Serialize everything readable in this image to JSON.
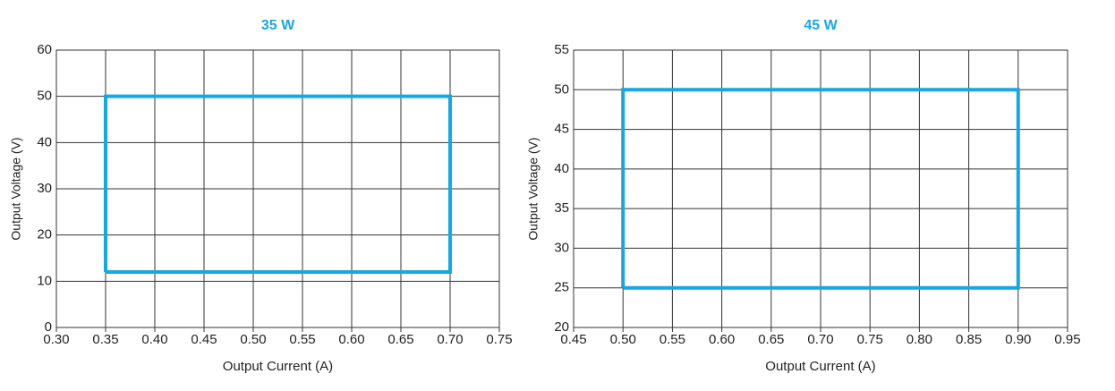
{
  "chart_data": [
    {
      "type": "line",
      "title": "35 W",
      "xlabel": "Output Current (A)",
      "ylabel": "Output Voltage (V)",
      "x": [
        0.35,
        0.35,
        0.7,
        0.7,
        0.35
      ],
      "values": [
        12,
        50,
        50,
        12,
        12
      ],
      "color": "#1aa7e0",
      "xlim": [
        0.3,
        0.75
      ],
      "xticks": [
        {
          "value": 0.3,
          "label": "0.30"
        },
        {
          "value": 0.35,
          "label": "0.35"
        },
        {
          "value": 0.4,
          "label": "0.40"
        },
        {
          "value": 0.45,
          "label": "0.45"
        },
        {
          "value": 0.5,
          "label": "0.50"
        },
        {
          "value": 0.55,
          "label": "0.55"
        },
        {
          "value": 0.6,
          "label": "0.60"
        },
        {
          "value": 0.65,
          "label": "0.65"
        },
        {
          "value": 0.7,
          "label": "0.70"
        },
        {
          "value": 0.75,
          "label": "0.75"
        }
      ],
      "ylim": [
        0,
        60
      ],
      "yticks": [
        0,
        10,
        20,
        30,
        40,
        50,
        60
      ],
      "grid": true
    },
    {
      "type": "line",
      "title": "45 W",
      "xlabel": "Output Current (A)",
      "ylabel": "Output Voltage (V)",
      "x": [
        0.5,
        0.5,
        0.9,
        0.9,
        0.5
      ],
      "values": [
        25,
        50,
        50,
        25,
        25
      ],
      "color": "#1aa7e0",
      "xlim": [
        0.45,
        0.95
      ],
      "xticks": [
        {
          "value": 0.45,
          "label": "0.45"
        },
        {
          "value": 0.5,
          "label": "0.50"
        },
        {
          "value": 0.55,
          "label": "0.55"
        },
        {
          "value": 0.6,
          "label": "0.60"
        },
        {
          "value": 0.65,
          "label": "0.65"
        },
        {
          "value": 0.7,
          "label": "0.70"
        },
        {
          "value": 0.75,
          "label": "0.75"
        },
        {
          "value": 0.8,
          "label": "0.80"
        },
        {
          "value": 0.85,
          "label": "0.85"
        },
        {
          "value": 0.9,
          "label": "0.90"
        },
        {
          "value": 0.95,
          "label": "0.95"
        }
      ],
      "ylim": [
        20,
        55
      ],
      "yticks": [
        20,
        25,
        30,
        35,
        40,
        45,
        50,
        55
      ],
      "grid": true
    }
  ]
}
